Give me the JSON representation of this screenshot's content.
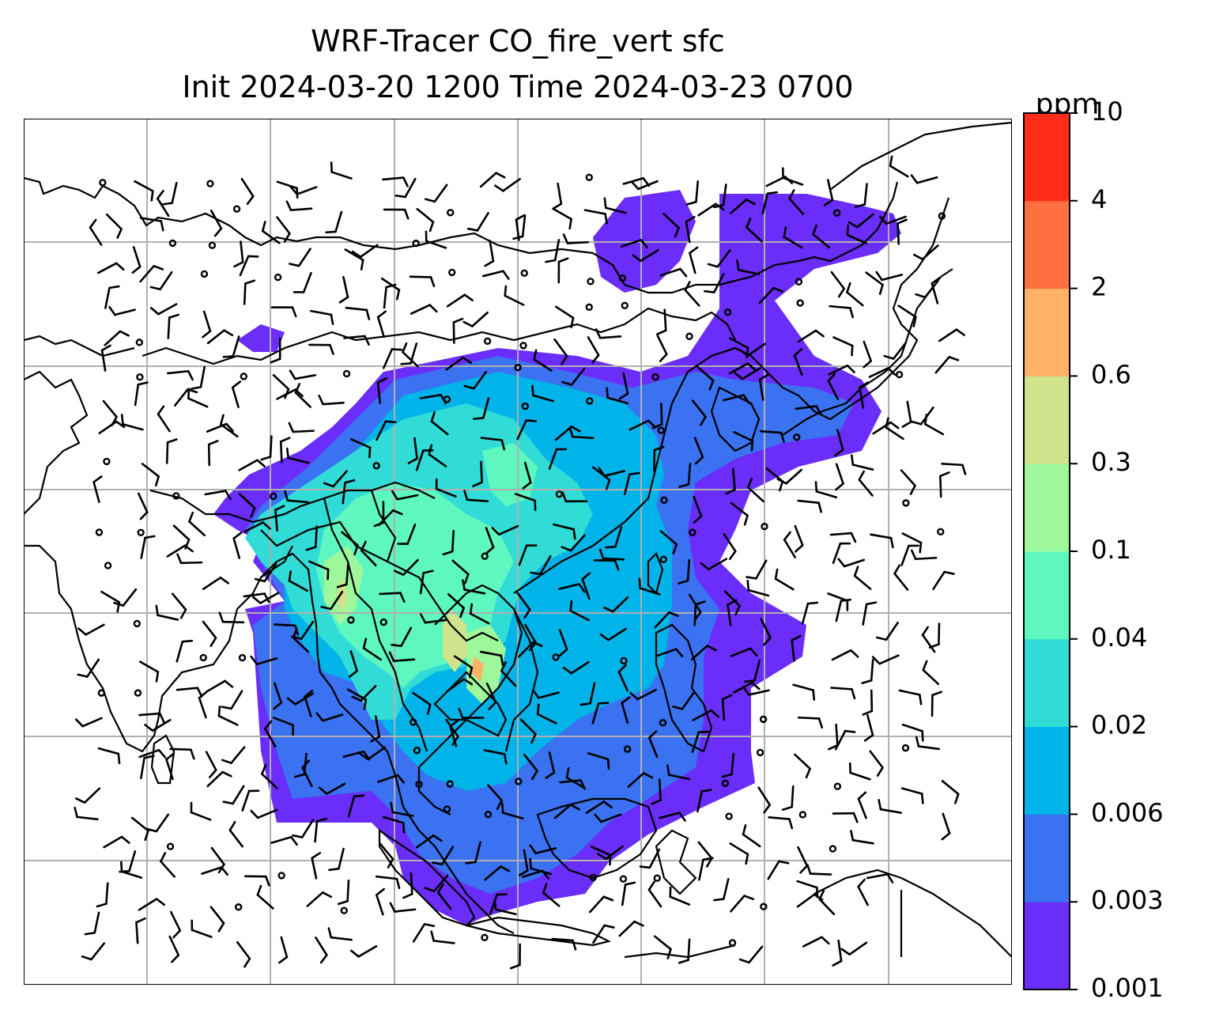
{
  "title": {
    "line1": "WRF-Tracer CO_fire_vert sfc",
    "line2": "Init 2024-03-20 1200 Time 2024-03-23 0700"
  },
  "colorbar": {
    "units": "ppm",
    "ticks": [
      "10",
      "4",
      "2",
      "0.6",
      "0.3",
      "0.1",
      "0.04",
      "0.02",
      "0.006",
      "0.003",
      "0.001"
    ],
    "colors": [
      "#6a2dfa",
      "#3a72f2",
      "#00b3e8",
      "#31dcd6",
      "#5ff7c0",
      "#9ef79a",
      "#d1e28c",
      "#ffb267",
      "#ff7041",
      "#ff2c1a"
    ]
  },
  "map": {
    "gridlines": true,
    "gridline_color": "#b0b0b0",
    "coastline_color": "#000000",
    "wind_barbs": true
  }
}
